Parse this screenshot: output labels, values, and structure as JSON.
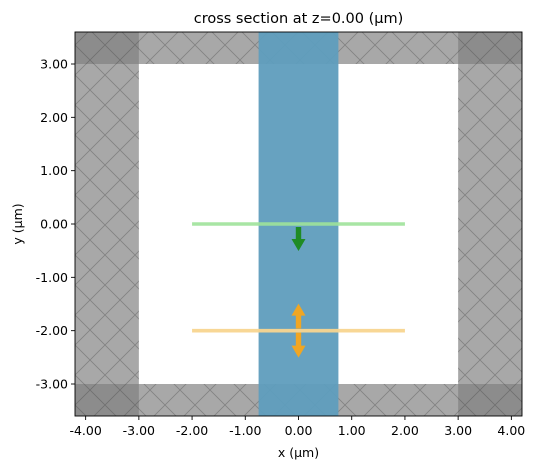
{
  "chart_data": {
    "type": "cross-section",
    "title": "cross section at z=0.00 (μm)",
    "xlabel": "x (μm)",
    "ylabel": "y (μm)",
    "xlim": [
      -4.2,
      4.2
    ],
    "ylim": [
      -3.6,
      3.6
    ],
    "xticks": [
      -4,
      -3,
      -2,
      -1,
      0,
      1,
      2,
      3,
      4
    ],
    "xtick_labels": [
      "-4.00",
      "-3.00",
      "-2.00",
      "-1.00",
      "0.00",
      "1.00",
      "2.00",
      "3.00",
      "4.00"
    ],
    "yticks": [
      3,
      2,
      1,
      0,
      -1,
      -2,
      -3
    ],
    "ytick_labels": [
      "3.00",
      "2.00",
      "1.00",
      "0.00",
      "-1.00",
      "-2.00",
      "-3.00"
    ],
    "simulation_domain": {
      "x": [
        -4.2,
        4.2
      ],
      "y": [
        -3.6,
        3.6
      ]
    },
    "pml_thickness": {
      "x": 1.2,
      "y": 0.6
    },
    "structures": [
      {
        "kind": "waveguide",
        "x": [
          -0.75,
          0.75
        ],
        "y": [
          -3.6,
          3.6
        ],
        "color": "#5f9dbd"
      }
    ],
    "sources": [
      {
        "kind": "source",
        "x": [
          -2,
          2
        ],
        "y": 0,
        "color": "#9fe29a",
        "arrow_color": "#1f8b24",
        "direction": "-y"
      }
    ],
    "monitors": [
      {
        "kind": "monitor",
        "x": [
          -2,
          2
        ],
        "y": -2,
        "color": "#f8d58f",
        "arrow_color": "#f0a623",
        "direction": "both"
      }
    ],
    "colors": {
      "pml": "#a8a8a8",
      "pml_corner": "#8c8c8c",
      "hatch": "#6f6f6f",
      "background": "#ffffff"
    }
  }
}
